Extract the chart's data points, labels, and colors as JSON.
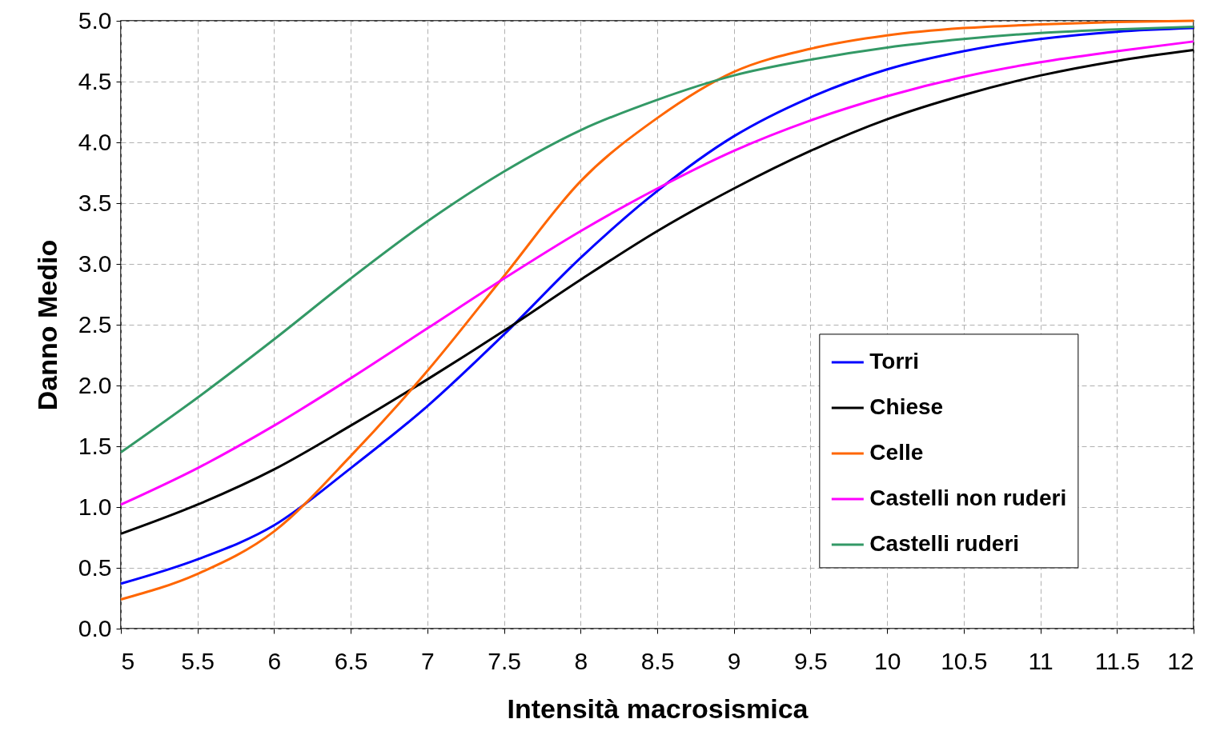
{
  "chart_data": {
    "type": "line",
    "xlabel": "Intensità macrosismica",
    "ylabel": "Danno Medio",
    "x": [
      5,
      5.5,
      6,
      6.5,
      7,
      7.5,
      8,
      8.5,
      9,
      9.5,
      10,
      10.5,
      11,
      11.5,
      12
    ],
    "series": [
      {
        "name": "Torri",
        "color": "#0000ff",
        "values": [
          0.37,
          0.57,
          0.85,
          1.32,
          1.83,
          2.42,
          3.05,
          3.6,
          4.05,
          4.37,
          4.6,
          4.75,
          4.85,
          4.91,
          4.94
        ]
      },
      {
        "name": "Chiese",
        "color": "#000000",
        "values": [
          0.78,
          1.02,
          1.31,
          1.67,
          2.05,
          2.45,
          2.87,
          3.27,
          3.62,
          3.93,
          4.19,
          4.39,
          4.55,
          4.67,
          4.76
        ]
      },
      {
        "name": "Celle",
        "color": "#ff6600",
        "values": [
          0.24,
          0.45,
          0.8,
          1.42,
          2.12,
          2.9,
          3.68,
          4.2,
          4.58,
          4.77,
          4.88,
          4.94,
          4.97,
          4.99,
          5.0
        ]
      },
      {
        "name": "Castelli non ruderi",
        "color": "#ff00ff",
        "values": [
          1.02,
          1.32,
          1.67,
          2.06,
          2.47,
          2.88,
          3.27,
          3.62,
          3.93,
          4.18,
          4.38,
          4.54,
          4.66,
          4.75,
          4.83
        ]
      },
      {
        "name": "Castelli ruderi",
        "color": "#339966",
        "values": [
          1.45,
          1.9,
          2.38,
          2.88,
          3.35,
          3.76,
          4.1,
          4.35,
          4.55,
          4.68,
          4.78,
          4.85,
          4.9,
          4.93,
          4.95
        ]
      }
    ],
    "xlim": [
      5,
      12
    ],
    "xticks": [
      5,
      5.5,
      6,
      6.5,
      7,
      7.5,
      8,
      8.5,
      9,
      9.5,
      10,
      10.5,
      11,
      11.5,
      12
    ],
    "ylim": [
      0,
      5
    ],
    "yticks": [
      {
        "value": 0,
        "label": "0.0"
      },
      {
        "value": 0.5,
        "label": "0.5"
      },
      {
        "value": 1,
        "label": "1.0"
      },
      {
        "value": 1.5,
        "label": "1.5"
      },
      {
        "value": 2,
        "label": "2.0"
      },
      {
        "value": 2.5,
        "label": "2.5"
      },
      {
        "value": 3,
        "label": "3.0"
      },
      {
        "value": 3.5,
        "label": "3.5"
      },
      {
        "value": 4,
        "label": "4.0"
      },
      {
        "value": 4.5,
        "label": "4.5"
      },
      {
        "value": 5,
        "label": "5.0"
      }
    ],
    "grid": true,
    "legend": "right",
    "marker": "none",
    "line_style": "solid"
  }
}
